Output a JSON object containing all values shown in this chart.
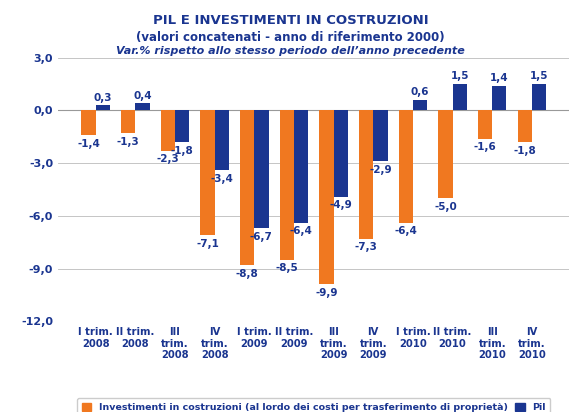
{
  "title_line1": "PIL E INVESTIMENTI IN COSTRUZIONI",
  "title_line2": "(valori concatenati - anno di riferimento 2000)",
  "title_line3": "Var.% rispetto allo stesso periodo dell’anno precedente",
  "categories": [
    "I trim.\n2008",
    "II trim.\n2008",
    "III\ntrim.\n2008",
    "IV\ntrim.\n2008",
    "I trim.\n2009",
    "II trim.\n2009",
    "III\ntrim.\n2009",
    "IV\ntrim.\n2009",
    "I trim.\n2010",
    "II trim.\n2010",
    "III\ntrim.\n2010",
    "IV\ntrim.\n2010"
  ],
  "investimenti": [
    -1.4,
    -1.3,
    -2.3,
    -7.1,
    -8.8,
    -8.5,
    -9.9,
    -7.3,
    -6.4,
    -5.0,
    -1.6,
    -1.8
  ],
  "pil": [
    0.3,
    0.4,
    -1.8,
    -3.4,
    -6.7,
    -6.4,
    -4.9,
    -2.9,
    0.6,
    1.5,
    1.4,
    1.5
  ],
  "investimenti_color": "#F07820",
  "pil_color": "#1A3590",
  "label_color": "#1A3590",
  "title_color": "#1A3590",
  "axis_color": "#1A3590",
  "ylim": [
    -12.0,
    3.0
  ],
  "yticks": [
    3.0,
    0.0,
    -3.0,
    -6.0,
    -9.0,
    -12.0
  ],
  "ytick_labels": [
    "3,0",
    "0,0",
    "-3,0",
    "-6,0",
    "-9,0",
    "-12,0"
  ],
  "legend_investimenti": "Investimenti in costruzioni (al lordo dei costi per trasferimento di proprietà)",
  "legend_pil": "Pil",
  "background_color": "#FFFFFF",
  "grid_color": "#BBBBBB",
  "label_fontsize": 7.5,
  "title_fontsize_1": 9.5,
  "title_fontsize_2": 8.5,
  "title_fontsize_3": 8.0,
  "bar_width": 0.36
}
